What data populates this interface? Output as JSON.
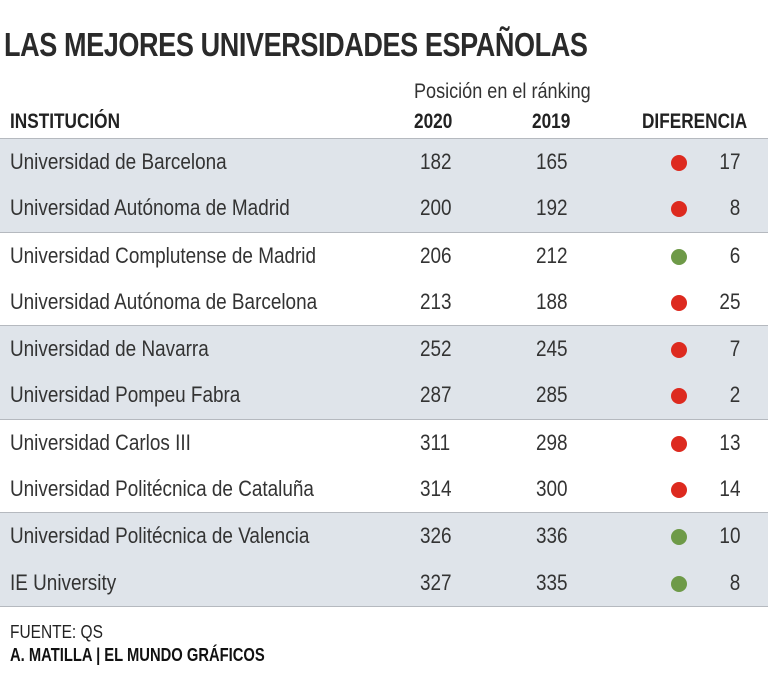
{
  "title": "LAS MEJORES UNIVERSIDADES ESPAÑOLAS",
  "subheading": "Posición en el ránking",
  "columns": {
    "institution": "INSTITUCIÓN",
    "y2020": "2020",
    "y2019": "2019",
    "difference": "DIFERENCIA"
  },
  "colors": {
    "down": "#dd2a1f",
    "up": "#6e9a48",
    "shaded_row": "#dfe4ea",
    "separator": "#b5b9bf"
  },
  "chart_data": {
    "type": "table",
    "title": "LAS MEJORES UNIVERSIDADES ESPAÑOLAS",
    "subtitle": "Posición en el ránking",
    "headers": [
      "INSTITUCIÓN",
      "2020",
      "2019",
      "DIFERENCIA"
    ],
    "rows": [
      {
        "institution": "Universidad de Barcelona",
        "y2020": 182,
        "y2019": 165,
        "difference": 17,
        "trend": "down"
      },
      {
        "institution": "Universidad Autónoma de Madrid",
        "y2020": 200,
        "y2019": 192,
        "difference": 8,
        "trend": "down"
      },
      {
        "institution": "Universidad Complutense de Madrid",
        "y2020": 206,
        "y2019": 212,
        "difference": 6,
        "trend": "up"
      },
      {
        "institution": "Universidad Autónoma de Barcelona",
        "y2020": 213,
        "y2019": 188,
        "difference": 25,
        "trend": "down"
      },
      {
        "institution": "Universidad de Navarra",
        "y2020": 252,
        "y2019": 245,
        "difference": 7,
        "trend": "down"
      },
      {
        "institution": "Universidad Pompeu Fabra",
        "y2020": 287,
        "y2019": 285,
        "difference": 2,
        "trend": "down"
      },
      {
        "institution": "Universidad Carlos III",
        "y2020": 311,
        "y2019": 298,
        "difference": 13,
        "trend": "down"
      },
      {
        "institution": "Universidad Politécnica de Cataluña",
        "y2020": 314,
        "y2019": 300,
        "difference": 14,
        "trend": "down"
      },
      {
        "institution": "Universidad Politécnica de Valencia",
        "y2020": 326,
        "y2019": 336,
        "difference": 10,
        "trend": "up"
      },
      {
        "institution": "IE University",
        "y2020": 327,
        "y2019": 335,
        "difference": 8,
        "trend": "up"
      }
    ]
  },
  "footer": {
    "source": "FUENTE: QS",
    "credit": "A. MATILLA | EL MUNDO GRÁFICOS"
  }
}
